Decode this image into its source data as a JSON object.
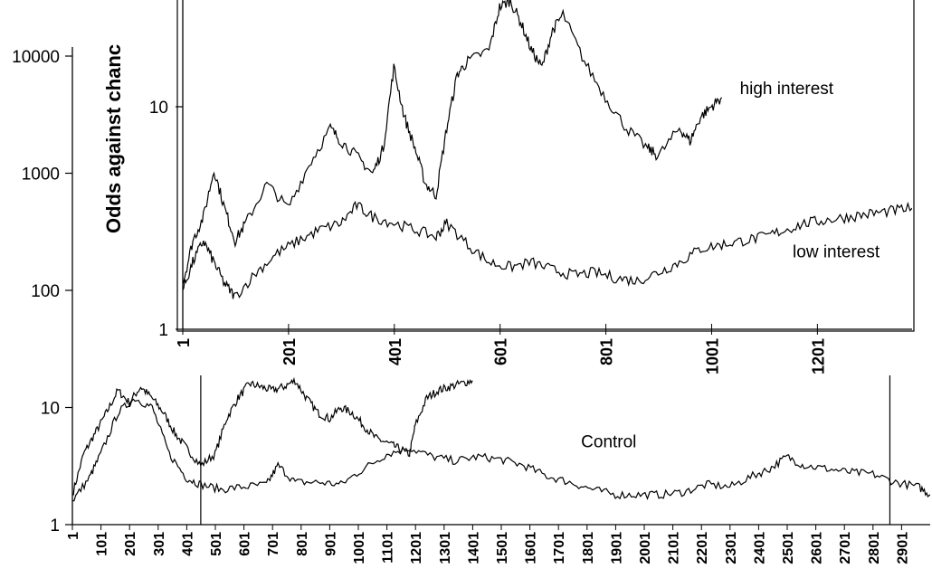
{
  "chart_data": [
    {
      "id": "outer",
      "type": "line",
      "yscale": "log",
      "ylabel": "Odds against chanc",
      "xlabel": "",
      "title": "",
      "y_ticks": [
        1,
        10,
        100,
        1000,
        10000
      ],
      "y_tick_labels": [
        "1",
        "10",
        "100",
        "1000",
        "10000"
      ],
      "x_ticks": [
        1,
        101,
        201,
        301,
        401,
        501,
        601,
        701,
        801,
        901,
        1001,
        1101,
        1201,
        1301,
        1401,
        1501,
        1601,
        1701,
        1801,
        1901,
        2001,
        2101,
        2201,
        2301,
        2401,
        2501,
        2601,
        2701,
        2801,
        2901
      ],
      "x_tick_labels": [
        "1",
        "101",
        "201",
        "301",
        "401",
        "501",
        "601",
        "701",
        "801",
        "901",
        "1001",
        "1101",
        "1201",
        "1301",
        "1401",
        "1501",
        "1601",
        "1701",
        "1801",
        "1901",
        "2001",
        "2101",
        "2201",
        "2301",
        "2401",
        "2501",
        "2601",
        "2701",
        "2801",
        "2901"
      ],
      "xlim": [
        1,
        3001
      ],
      "ylim": [
        1,
        30000
      ],
      "vertical_markers": [
        450,
        2860
      ],
      "series": [
        {
          "name": "",
          "x": [
            1,
            40,
            80,
            120,
            160,
            200,
            240,
            280,
            320,
            360,
            400,
            450,
            500,
            540,
            580,
            620,
            660,
            700,
            740,
            780,
            820,
            860,
            900,
            940,
            980,
            1020,
            1060,
            1100,
            1140,
            1180,
            1200,
            1240,
            1280,
            1320,
            1360,
            1400
          ],
          "y": [
            1.8,
            4,
            6,
            9,
            14,
            11,
            15,
            12,
            9,
            6,
            4.5,
            3.2,
            4,
            8,
            12,
            16,
            15,
            14,
            15,
            17,
            12,
            9,
            8,
            10,
            9,
            7,
            5.5,
            5,
            4.5,
            4,
            7,
            12,
            14,
            15,
            16,
            17
          ]
        },
        {
          "name": "Control",
          "x": [
            1,
            60,
            100,
            160,
            220,
            280,
            340,
            400,
            450,
            520,
            600,
            680,
            720,
            780,
            860,
            940,
            1020,
            1100,
            1180,
            1260,
            1340,
            1420,
            1500,
            1580,
            1660,
            1740,
            1820,
            1900,
            1980,
            2060,
            2140,
            2220,
            2300,
            2380,
            2440,
            2500,
            2560,
            2640,
            2720,
            2800,
            2880,
            2960,
            3001
          ],
          "y": [
            1.6,
            2.5,
            4,
            9,
            12,
            10,
            4,
            2.5,
            2.2,
            2,
            2.1,
            2.2,
            3.2,
            2.3,
            2.3,
            2.2,
            3,
            4,
            4.5,
            3.8,
            3.5,
            3.8,
            3.6,
            3.2,
            2.6,
            2.3,
            2,
            1.8,
            1.8,
            1.8,
            1.9,
            2.2,
            2.1,
            2.6,
            3,
            3.8,
            3.2,
            3,
            2.8,
            2.7,
            2.3,
            2.1,
            1.8
          ]
        }
      ],
      "annotations": [
        {
          "text": "Control",
          "x": 1780,
          "y": 3.2
        }
      ]
    },
    {
      "id": "inset",
      "type": "line",
      "yscale": "log",
      "title": "",
      "xlabel": "",
      "ylabel": "",
      "y_ticks": [
        1,
        10
      ],
      "y_tick_labels": [
        "1",
        "10"
      ],
      "x_ticks": [
        1,
        201,
        401,
        601,
        801,
        1001,
        1201
      ],
      "x_tick_labels": [
        "1",
        "201",
        "401",
        "601",
        "801",
        "1001",
        "1201"
      ],
      "xlim": [
        1,
        1380
      ],
      "ylim": [
        1,
        30
      ],
      "series": [
        {
          "name": "high interest",
          "x": [
            1,
            20,
            40,
            60,
            80,
            100,
            120,
            160,
            200,
            240,
            280,
            300,
            330,
            360,
            380,
            400,
            420,
            440,
            460,
            480,
            500,
            520,
            540,
            580,
            600,
            620,
            640,
            660,
            680,
            700,
            720,
            760,
            800,
            840,
            880,
            900,
            940,
            960,
            980,
            1000,
            1020
          ],
          "y": [
            1.6,
            2.5,
            3.2,
            5.2,
            3.5,
            2.5,
            3,
            4.5,
            3.5,
            5.5,
            8,
            7,
            6,
            5,
            6.5,
            15,
            9,
            6.5,
            4.5,
            4,
            8,
            14,
            16,
            18,
            28,
            30,
            24,
            18,
            15,
            22,
            26,
            16,
            11,
            8,
            6.5,
            6,
            8,
            7,
            9,
            10,
            11
          ]
        },
        {
          "name": "low interest",
          "x": [
            1,
            20,
            40,
            60,
            80,
            100,
            140,
            180,
            220,
            260,
            300,
            330,
            360,
            400,
            440,
            480,
            500,
            540,
            580,
            620,
            660,
            700,
            740,
            780,
            820,
            860,
            900,
            940,
            980,
            1020,
            1060,
            1100,
            1140,
            1180,
            1220,
            1260,
            1300,
            1340,
            1380
          ],
          "y": [
            1.5,
            2,
            2.5,
            2,
            1.6,
            1.4,
            1.8,
            2.2,
            2.5,
            2.8,
            3,
            3.6,
            3.2,
            3,
            2.8,
            2.6,
            3,
            2.4,
            2,
            1.9,
            2,
            1.85,
            1.75,
            1.8,
            1.7,
            1.65,
            1.8,
            2,
            2.3,
            2.4,
            2.5,
            2.6,
            2.8,
            3,
            3.1,
            3.2,
            3.3,
            3.4,
            3.5
          ]
        }
      ],
      "annotations": [
        {
          "text": "high interest",
          "x": 1020,
          "y": 11
        },
        {
          "text": "low interest",
          "x": 1120,
          "y": 2.1
        }
      ]
    }
  ]
}
